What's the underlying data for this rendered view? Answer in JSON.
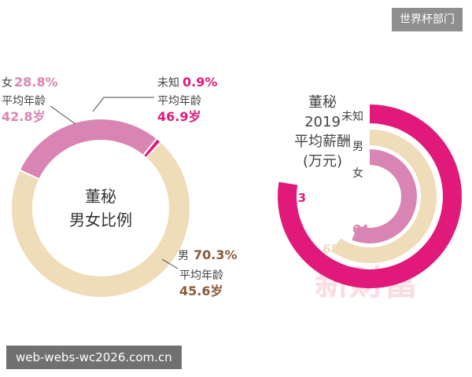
{
  "header_tag": "世界杯部门",
  "footer_text": "web-webs-wc2026.com.cn",
  "watermark": "新财富",
  "chart_data": [
    {
      "type": "pie",
      "center_label": [
        "董秘",
        "男女比例"
      ],
      "slices": [
        {
          "name": "男",
          "value": 70.3,
          "label": "70.3%",
          "age_label": "平均年龄",
          "age": "45.6岁",
          "color": "#efdcb8"
        },
        {
          "name": "女",
          "value": 28.8,
          "label": "28.8%",
          "age_label": "平均年龄",
          "age": "42.8岁",
          "color": "#d985b3"
        },
        {
          "name": "未知",
          "value": 0.9,
          "label": "0.9%",
          "age_label": "平均年龄",
          "age": "46.9岁",
          "color": "#e0197a"
        }
      ]
    },
    {
      "type": "bar",
      "orientation": "radial",
      "title": [
        "董秘",
        "2019",
        "平均薪酬",
        "(万元)"
      ],
      "categories": [
        "未知",
        "男",
        "女"
      ],
      "values": [
        88.3,
        68,
        64
      ],
      "colors": [
        "#e0197a",
        "#efdcb8",
        "#d985b3"
      ]
    }
  ]
}
